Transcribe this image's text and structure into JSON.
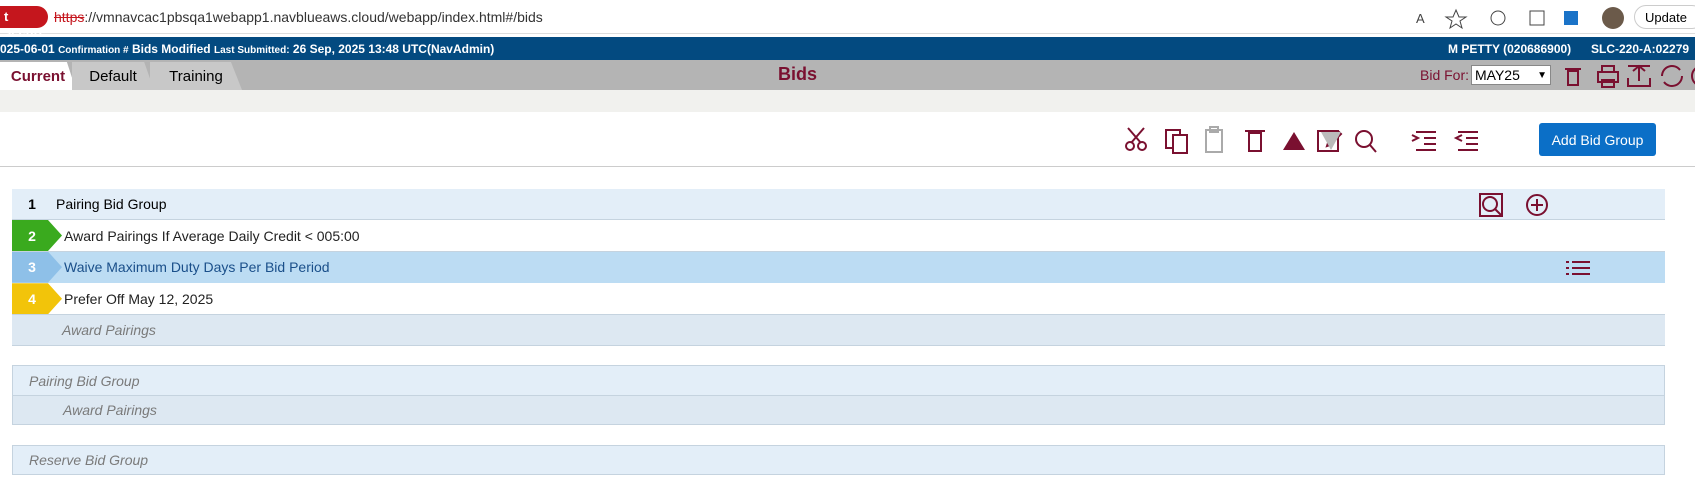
{
  "browser": {
    "security": "t secure",
    "url_scheme": "https",
    "url_rest": "://vmnavcac1pbsqa1webapp1.navblueaws.cloud/webapp/index.html#/bids",
    "update": "Update"
  },
  "header": {
    "date": "025-06-01",
    "confirmation_label": "Confirmation #",
    "status": "Bids Modified",
    "last_submitted_label": "Last Submitted:",
    "last_submitted": "26 Sep, 2025 13:48 UTC(NavAdmin)",
    "user": "M PETTY (020686900)",
    "position": "SLC-220-A:02279"
  },
  "tabs": [
    "Current",
    "Default",
    "Training"
  ],
  "page_title": "Bids",
  "bid_for": {
    "label": "Bid For:",
    "value": "MAY25"
  },
  "add_button": "Add Bid Group",
  "groups": [
    {
      "number": "1",
      "title": "Pairing Bid Group",
      "rows": [
        {
          "number": "2",
          "text": "Award Pairings If Average Daily Credit < 005:00",
          "color": "#3aaa1e"
        },
        {
          "number": "3",
          "text": "Waive Maximum Duty Days Per Bid Period",
          "color": "#8ec0e8"
        },
        {
          "number": "4",
          "text": "Prefer Off May 12, 2025",
          "color": "#f2c40a"
        }
      ],
      "footer": "Award Pairings"
    },
    {
      "title": "Pairing Bid Group",
      "footer": "Award Pairings"
    },
    {
      "title": "Reserve Bid Group"
    }
  ]
}
